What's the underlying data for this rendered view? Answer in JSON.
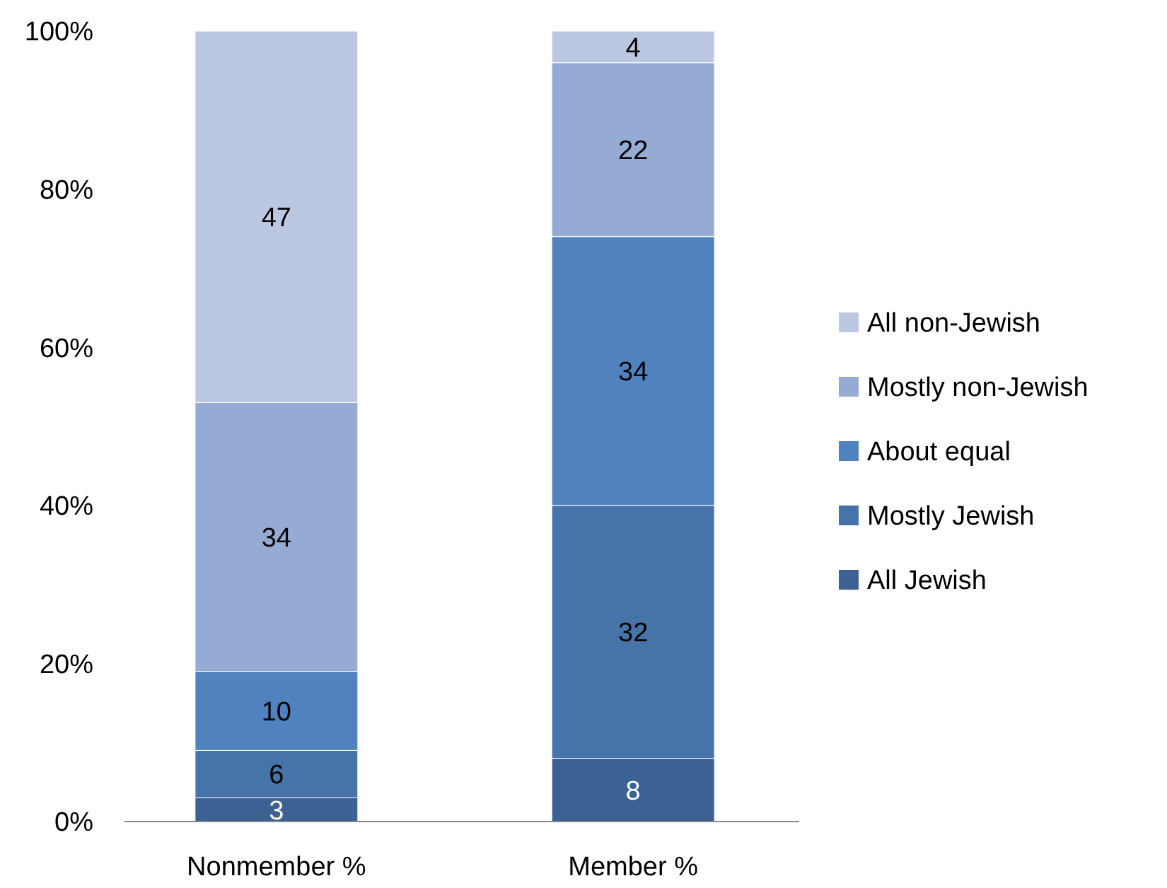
{
  "chart_data": {
    "type": "bar",
    "stacked": true,
    "categories": [
      "Nonmember %",
      "Member %"
    ],
    "series": [
      {
        "name": "All Jewish",
        "color": "#3c6193",
        "values": [
          3,
          8
        ]
      },
      {
        "name": "Mostly Jewish",
        "color": "#4674a8",
        "values": [
          6,
          32
        ]
      },
      {
        "name": "About equal",
        "color": "#4f82be",
        "values": [
          10,
          34
        ]
      },
      {
        "name": "Mostly non-Jewish",
        "color": "#95abd3",
        "values": [
          34,
          22
        ]
      },
      {
        "name": "All non-Jewish",
        "color": "#bcc8e2",
        "values": [
          47,
          4
        ]
      }
    ],
    "ylim": [
      0,
      100
    ],
    "yticks": [
      {
        "value": 0,
        "label": "0%"
      },
      {
        "value": 20,
        "label": "20%"
      },
      {
        "value": 40,
        "label": "40%"
      },
      {
        "value": 60,
        "label": "60%"
      },
      {
        "value": 80,
        "label": "80%"
      },
      {
        "value": 100,
        "label": "100%"
      }
    ],
    "grid": false,
    "legend": "right",
    "data_labels": true
  }
}
